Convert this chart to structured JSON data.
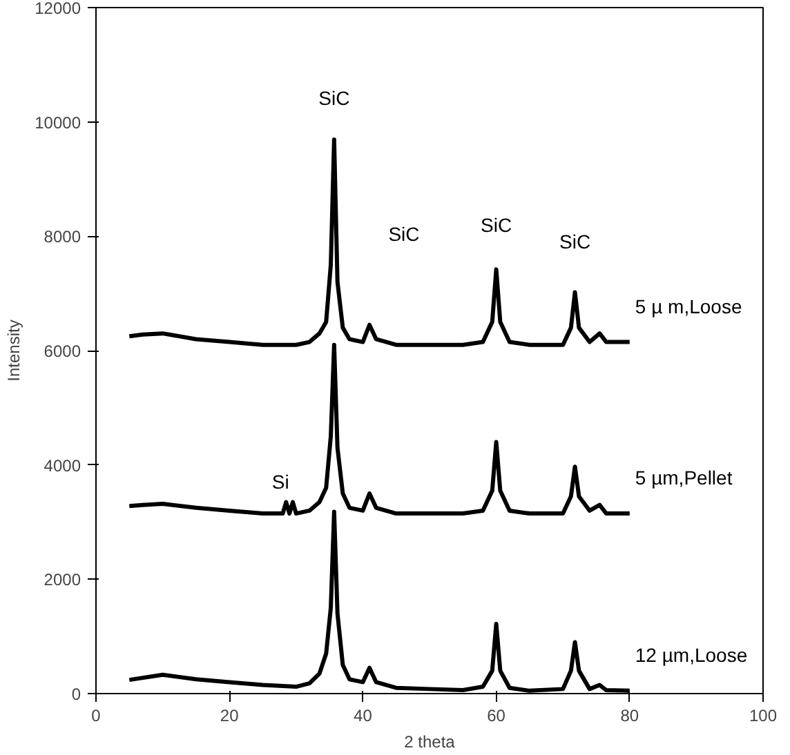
{
  "chart_data": {
    "type": "line",
    "xlabel": "2 theta",
    "ylabel": "Intensity",
    "xlim": [
      0,
      100
    ],
    "xticks": [
      0,
      20,
      40,
      60,
      80,
      100
    ],
    "ylim": [
      0,
      12000
    ],
    "yticks": [
      0,
      2000,
      4000,
      6000,
      8000,
      10000,
      12000
    ],
    "grid": false,
    "legend": false,
    "marker": "none",
    "line_style": "solid",
    "series": [
      {
        "name": "5 µ m,Loose",
        "color": "#000000",
        "x": [
          5,
          7,
          10,
          15,
          20,
          25,
          30,
          32,
          33.5,
          34.5,
          35.2,
          35.7,
          36.2,
          37,
          38,
          40,
          41,
          42,
          45,
          50,
          55,
          58,
          59.4,
          60,
          60.6,
          62,
          65,
          70,
          71.2,
          71.8,
          72.4,
          74,
          75.5,
          76.5,
          80
        ],
        "values": [
          6250,
          6280,
          6300,
          6200,
          6150,
          6100,
          6100,
          6150,
          6300,
          6500,
          7500,
          9690,
          7200,
          6400,
          6200,
          6150,
          6450,
          6200,
          6100,
          6100,
          6100,
          6150,
          6500,
          7420,
          6500,
          6150,
          6100,
          6100,
          6400,
          7020,
          6400,
          6150,
          6300,
          6150,
          6150
        ]
      },
      {
        "name": "5 µm,Pellet",
        "color": "#000000",
        "x": [
          5,
          7,
          10,
          15,
          20,
          25,
          28,
          28.5,
          29,
          29.5,
          30,
          32,
          33.5,
          34.5,
          35.2,
          35.7,
          36.2,
          37,
          38,
          40,
          41,
          42,
          45,
          50,
          55,
          58,
          59.4,
          60,
          60.6,
          62,
          65,
          70,
          71.2,
          71.8,
          72.4,
          74,
          75.5,
          76.5,
          80
        ],
        "values": [
          3280,
          3300,
          3320,
          3250,
          3200,
          3150,
          3150,
          3350,
          3150,
          3350,
          3150,
          3200,
          3350,
          3600,
          4500,
          6100,
          4300,
          3500,
          3250,
          3200,
          3500,
          3250,
          3150,
          3150,
          3150,
          3200,
          3550,
          4400,
          3550,
          3200,
          3150,
          3150,
          3450,
          3970,
          3450,
          3200,
          3300,
          3150,
          3150
        ]
      },
      {
        "name": "12 µm,Loose",
        "color": "#000000",
        "x": [
          5,
          10,
          15,
          20,
          25,
          30,
          32,
          33.5,
          34.5,
          35.2,
          35.7,
          36.2,
          37,
          38,
          40,
          41,
          42,
          45,
          50,
          55,
          58,
          59.4,
          60,
          60.6,
          62,
          65,
          70,
          71.2,
          71.8,
          72.4,
          74,
          75.5,
          76.5,
          80
        ],
        "values": [
          240,
          330,
          250,
          200,
          150,
          120,
          180,
          350,
          700,
          1500,
          3180,
          1400,
          500,
          250,
          200,
          450,
          200,
          100,
          80,
          60,
          120,
          400,
          1220,
          400,
          100,
          50,
          80,
          400,
          900,
          400,
          80,
          150,
          60,
          50
        ]
      }
    ],
    "annotations": [
      {
        "text": "SiC",
        "x": 35.7,
        "y": 9690
      },
      "SiC",
      {
        "text": "SiC",
        "x": 60,
        "y": 7420
      },
      {
        "text": "SiC",
        "x": 71.8,
        "y": 7020
      },
      {
        "text": "Si",
        "x": 28.5,
        "y": 3350
      }
    ]
  }
}
